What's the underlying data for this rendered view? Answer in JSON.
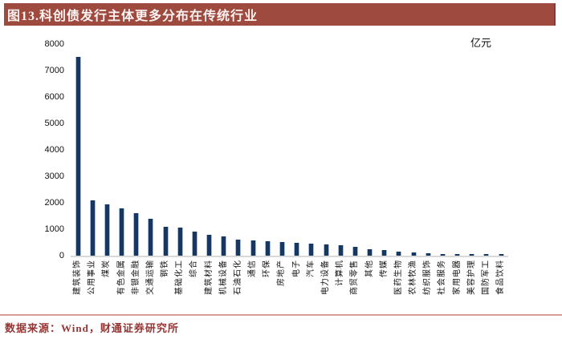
{
  "header": {
    "title": "图13.科创债发行主体更多分布在传统行业"
  },
  "footer": {
    "source_text": "数据来源：Wind，财通证券研究所"
  },
  "chart_data": {
    "type": "bar",
    "title": "图13.科创债发行主体更多分布在传统行业",
    "unit_label": "亿元",
    "xlabel": "",
    "ylabel": "亿元",
    "ylim": [
      0,
      8000
    ],
    "yticks": [
      0,
      1000,
      2000,
      3000,
      4000,
      5000,
      6000,
      7000,
      8000
    ],
    "grid": false,
    "legend": "none",
    "categories": [
      "建筑装饰",
      "公用事业",
      "煤炭",
      "有色金属",
      "非银金融",
      "交通运输",
      "钢铁",
      "基础化工",
      "综合",
      "建筑材料",
      "机械设备",
      "石油石化",
      "通信",
      "环保",
      "房地产",
      "电子",
      "汽车",
      "电力设备",
      "计算机",
      "商贸零售",
      "其他",
      "传媒",
      "医药生物",
      "农林牧渔",
      "纺织服饰",
      "社会服务",
      "家用电器",
      "美容护理",
      "国防军工",
      "食品饮料"
    ],
    "values": [
      7500,
      2100,
      1950,
      1800,
      1600,
      1400,
      1100,
      1050,
      900,
      800,
      730,
      600,
      570,
      550,
      520,
      480,
      450,
      420,
      400,
      320,
      250,
      220,
      160,
      120,
      90,
      75,
      65,
      60,
      55,
      50
    ]
  },
  "colors": {
    "title_bar_bg": "#9E4A3F",
    "title_text": "#FDF3F2",
    "bar_fill": "#17375E",
    "bar_edge": "#A6BDDE",
    "axis_line": "#D9D9D9",
    "footer_divider": "#D79C96",
    "footer_text": "#943734"
  }
}
